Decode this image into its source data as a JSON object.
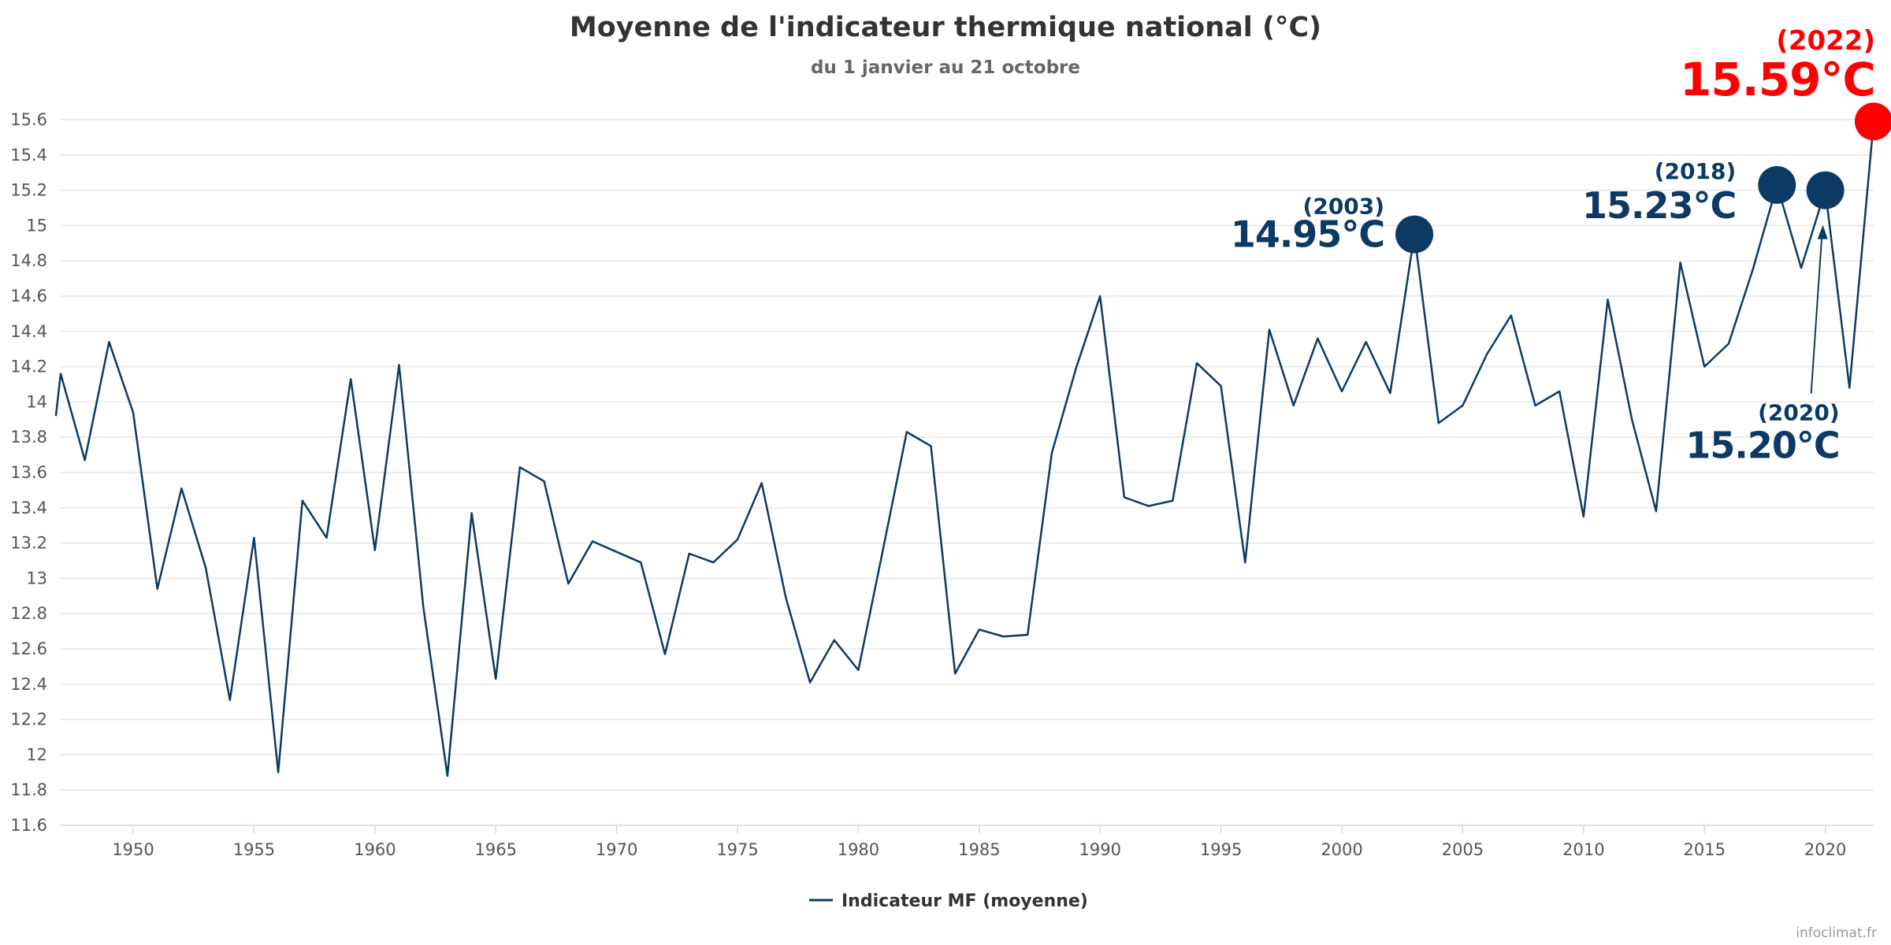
{
  "chart_data": {
    "type": "line",
    "title": "Moyenne de l'indicateur thermique national (°C)",
    "subtitle": "du 1 janvier au 21 octobre",
    "xlabel": "",
    "ylabel": "",
    "xlim": [
      1947,
      2022
    ],
    "ylim": [
      11.6,
      15.6
    ],
    "y_ticks": [
      "11.6",
      "11.8",
      "12",
      "12.2",
      "12.4",
      "12.6",
      "12.8",
      "13",
      "13.2",
      "13.4",
      "13.6",
      "13.8",
      "14",
      "14.2",
      "14.4",
      "14.6",
      "14.8",
      "15",
      "15.2",
      "15.4",
      "15.6"
    ],
    "x_ticks": [
      "1950",
      "1955",
      "1960",
      "1965",
      "1970",
      "1975",
      "1980",
      "1985",
      "1990",
      "1995",
      "2000",
      "2005",
      "2010",
      "2015",
      "2020"
    ],
    "grid": true,
    "legend_position": "bottom",
    "series": [
      {
        "name": "Indicateur MF (moyenne)",
        "color": "#0c3a64",
        "x": [
          1946.8,
          1947,
          1948,
          1949,
          1950,
          1951,
          1952,
          1953,
          1954,
          1955,
          1956,
          1957,
          1958,
          1959,
          1960,
          1961,
          1962,
          1963,
          1964,
          1965,
          1966,
          1967,
          1968,
          1969,
          1970,
          1971,
          1972,
          1973,
          1974,
          1975,
          1976,
          1977,
          1978,
          1979,
          1980,
          1981,
          1982,
          1983,
          1984,
          1985,
          1986,
          1987,
          1988,
          1989,
          1990,
          1991,
          1992,
          1993,
          1994,
          1995,
          1996,
          1997,
          1998,
          1999,
          2000,
          2001,
          2002,
          2003,
          2004,
          2005,
          2006,
          2007,
          2008,
          2009,
          2010,
          2011,
          2012,
          2013,
          2014,
          2015,
          2016,
          2017,
          2018,
          2019,
          2020,
          2021,
          2022
        ],
        "values": [
          13.92,
          14.16,
          13.67,
          14.34,
          13.94,
          12.94,
          13.51,
          13.06,
          12.31,
          13.23,
          11.9,
          13.44,
          13.23,
          14.13,
          13.16,
          14.21,
          12.84,
          11.88,
          13.37,
          12.43,
          13.63,
          13.55,
          12.97,
          13.21,
          13.15,
          13.09,
          12.57,
          13.14,
          13.09,
          13.22,
          13.54,
          12.89,
          12.41,
          12.65,
          12.48,
          13.15,
          13.83,
          13.75,
          12.46,
          12.71,
          12.67,
          12.68,
          13.71,
          14.19,
          14.6,
          13.46,
          13.41,
          13.44,
          14.22,
          14.09,
          13.09,
          14.41,
          13.98,
          14.36,
          14.06,
          14.34,
          14.05,
          14.95,
          13.88,
          13.98,
          14.27,
          14.49,
          13.98,
          14.06,
          13.35,
          14.58,
          13.9,
          13.38,
          14.79,
          14.2,
          14.33,
          14.75,
          15.23,
          14.76,
          15.2,
          14.08,
          15.59
        ]
      }
    ],
    "annotations": [
      {
        "year": "(2003)",
        "value": "14.95°C",
        "x": 2003,
        "y": 14.95,
        "color": "#0c3a64"
      },
      {
        "year": "(2018)",
        "value": "15.23°C",
        "x": 2018,
        "y": 15.23,
        "color": "#0c3a64"
      },
      {
        "year": "(2020)",
        "value": "15.20°C",
        "x": 2020,
        "y": 15.2,
        "color": "#0c3a64"
      },
      {
        "year": "(2022)",
        "value": "15.59°C",
        "x": 2022,
        "y": 15.59,
        "color": "#ff0000"
      }
    ],
    "credit": "infoclimat.fr"
  }
}
